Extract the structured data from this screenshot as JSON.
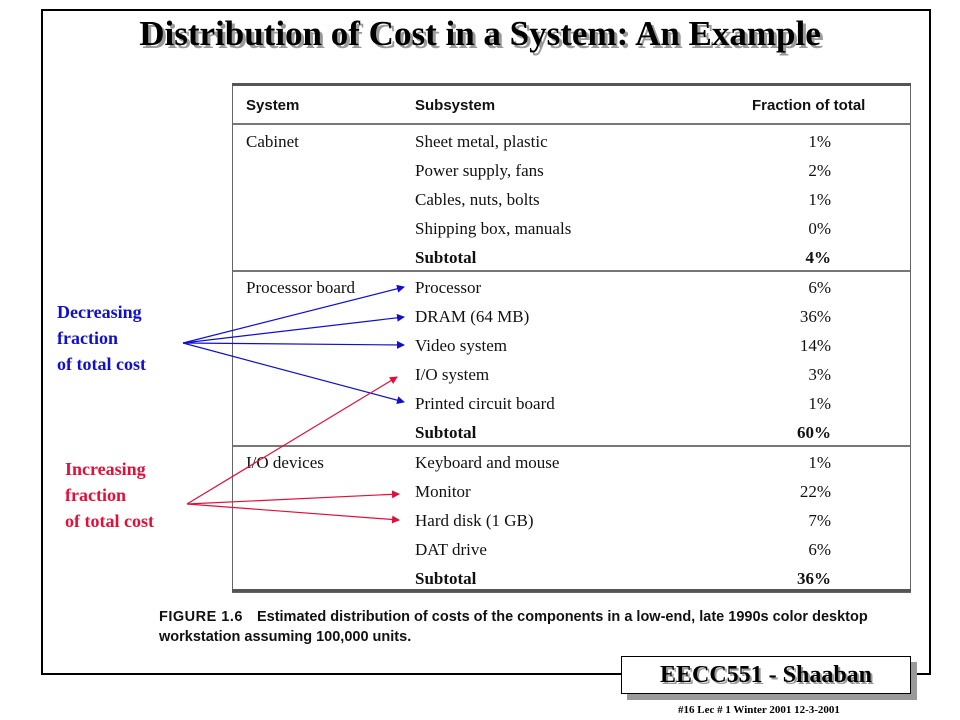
{
  "title": "Distribution of Cost in a System: An Example",
  "table": {
    "headers": {
      "system": "System",
      "subsystem": "Subsystem",
      "fraction": "Fraction of total"
    },
    "groups": [
      {
        "system": "Cabinet",
        "rows": [
          {
            "subsystem": "Sheet metal, plastic",
            "fraction": "1%"
          },
          {
            "subsystem": "Power supply, fans",
            "fraction": "2%"
          },
          {
            "subsystem": "Cables, nuts, bolts",
            "fraction": "1%"
          },
          {
            "subsystem": "Shipping box, manuals",
            "fraction": "0%"
          },
          {
            "subsystem": "Subtotal",
            "fraction": "4%",
            "subtotal": true
          }
        ]
      },
      {
        "system": "Processor board",
        "rows": [
          {
            "subsystem": "Processor",
            "fraction": "6%"
          },
          {
            "subsystem": "DRAM (64 MB)",
            "fraction": "36%"
          },
          {
            "subsystem": "Video system",
            "fraction": "14%"
          },
          {
            "subsystem": "I/O system",
            "fraction": "3%"
          },
          {
            "subsystem": "Printed circuit board",
            "fraction": "1%"
          },
          {
            "subsystem": "Subtotal",
            "fraction": "60%",
            "subtotal": true
          }
        ]
      },
      {
        "system": "I/O devices",
        "rows": [
          {
            "subsystem": "Keyboard and mouse",
            "fraction": "1%"
          },
          {
            "subsystem": "Monitor",
            "fraction": "22%"
          },
          {
            "subsystem": "Hard disk (1 GB)",
            "fraction": "7%"
          },
          {
            "subsystem": "DAT drive",
            "fraction": "6%"
          },
          {
            "subsystem": "Subtotal",
            "fraction": "36%",
            "subtotal": true
          }
        ]
      }
    ]
  },
  "annotations": {
    "decreasing": {
      "lines": [
        "Decreasing",
        "fraction",
        "of total cost"
      ],
      "color": "#1010cc"
    },
    "increasing": {
      "lines": [
        "Increasing",
        "fraction",
        "of total cost"
      ],
      "color": "#e0103a"
    }
  },
  "caption": {
    "figure": "FIGURE 1.6",
    "text": "Estimated distribution of costs of the components in a low-end, late 1990s color desktop workstation assuming 100,000 units."
  },
  "badge": "EECC551 - Shaaban",
  "footer": "#16   Lec # 1 Winter 2001   12-3-2001"
}
